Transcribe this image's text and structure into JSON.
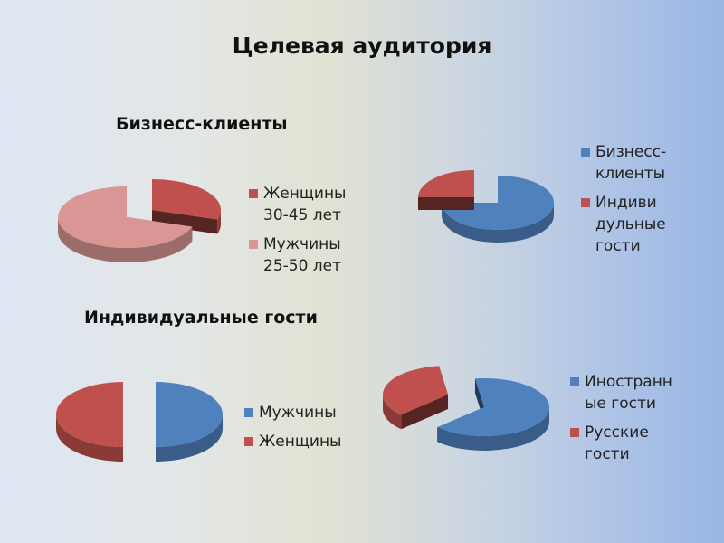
{
  "title": "Целевая аудитория",
  "headings": {
    "business": "Бизнесс-клиенты",
    "individual": "Индивидуальные гости"
  },
  "colors": {
    "red": "#c0504d",
    "pink": "#d99694",
    "blue": "#4f81bd"
  },
  "chart_data": [
    {
      "type": "pie",
      "categories": [
        "Женщины 30-45 лет",
        "Мужчины 25-50 лет"
      ],
      "values": [
        30,
        70
      ],
      "legend": [
        "Женщины\n30-45 лет",
        "Мужчины\n25-50 лет"
      ],
      "legend_position": "right"
    },
    {
      "type": "pie",
      "categories": [
        "Бизнесс-клиенты",
        "Индивидульные гости"
      ],
      "values": [
        75,
        25
      ],
      "legend": [
        "Бизнесс-\nклиенты",
        "Индиви\nдульные\nгости"
      ],
      "legend_position": "right"
    },
    {
      "type": "pie",
      "categories": [
        "Мужчины",
        "Женщины"
      ],
      "values": [
        50,
        50
      ],
      "legend": [
        "Мужчины",
        "Женщины"
      ],
      "legend_position": "right"
    },
    {
      "type": "pie",
      "categories": [
        "Иностранные гости",
        "Русские гости"
      ],
      "values": [
        65,
        35
      ],
      "legend": [
        "Иностранн\nые гости",
        "Русские\nгости"
      ],
      "legend_position": "right"
    }
  ]
}
